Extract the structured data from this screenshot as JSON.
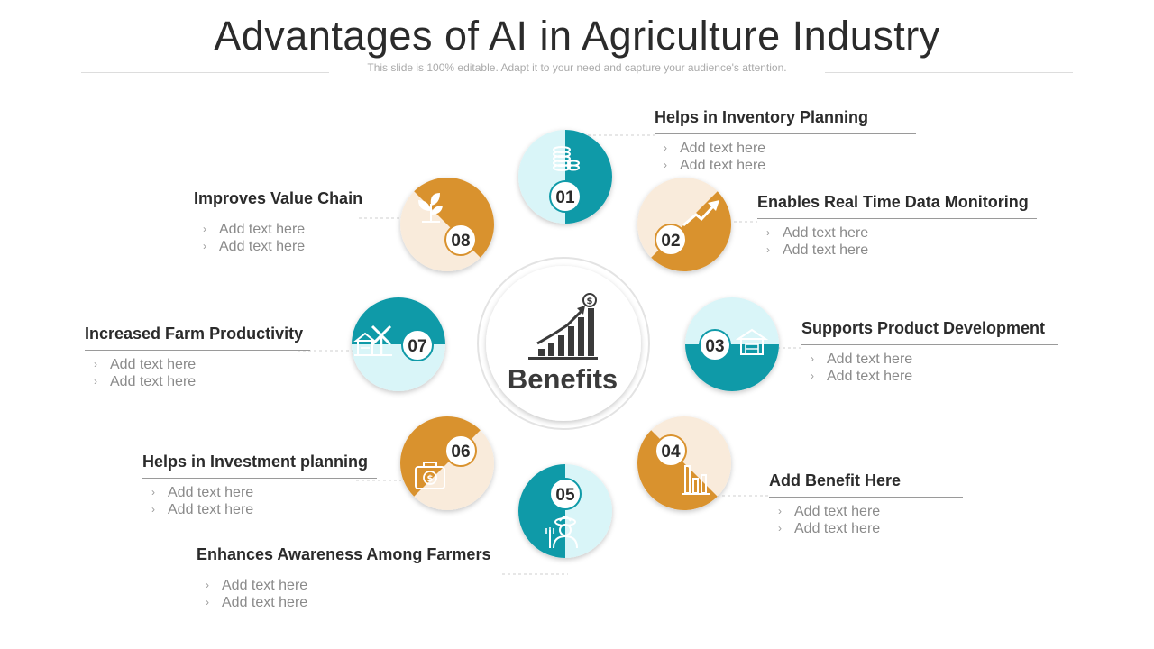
{
  "slide": {
    "title": "Advantages of AI in Agriculture Industry",
    "subtitle": "This slide is 100% editable. Adapt it to your need and capture your audience's attention."
  },
  "center": {
    "label": "Benefits",
    "icon": "growth-chart-dollar-icon"
  },
  "colors": {
    "teal": "#0f9aa8",
    "teal_light": "#d9f5f8",
    "orange": "#d9922e",
    "orange_light": "#f9ebdb",
    "dark": "#2b2b2b"
  },
  "steps": [
    {
      "number": "01",
      "title": "Helps in Inventory Planning",
      "items": [
        "Add text here",
        "Add text here"
      ],
      "icon": "coin-stack-icon",
      "color": "teal"
    },
    {
      "number": "02",
      "title": "Enables Real Time Data Monitoring",
      "items": [
        "Add text here",
        "Add text here"
      ],
      "icon": "trend-arrow-icon",
      "color": "orange"
    },
    {
      "number": "03",
      "title": "Supports Product Development",
      "items": [
        "Add text here",
        "Add text here"
      ],
      "icon": "warehouse-icon",
      "color": "teal"
    },
    {
      "number": "04",
      "title": "Add Benefit Here",
      "items": [
        "Add text here",
        "Add text here"
      ],
      "icon": "bar-chart-icon",
      "color": "orange"
    },
    {
      "number": "05",
      "title": "Enhances Awareness Among Farmers",
      "items": [
        "Add text here",
        "Add text here"
      ],
      "icon": "farmer-icon",
      "color": "teal"
    },
    {
      "number": "06",
      "title": "Helps in Investment planning",
      "items": [
        "Add text here",
        "Add text here"
      ],
      "icon": "money-bag-icon",
      "color": "orange"
    },
    {
      "number": "07",
      "title": "Increased Farm Productivity",
      "items": [
        "Add text here",
        "Add text here"
      ],
      "icon": "windmill-farm-icon",
      "color": "teal"
    },
    {
      "number": "08",
      "title": "Improves Value Chain",
      "items": [
        "Add text here",
        "Add text here"
      ],
      "icon": "sprout-icon",
      "color": "orange"
    }
  ]
}
